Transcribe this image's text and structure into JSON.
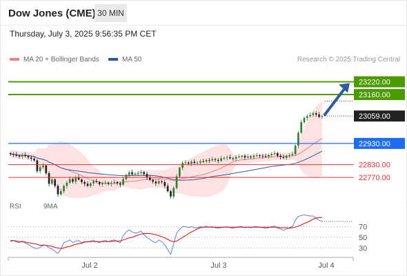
{
  "header": {
    "instrument": "Dow Jones (CME)",
    "timeframe": "30 MIN",
    "timestamp": "Thursday, July 3, 2025 9:56:35 PM CET"
  },
  "legend": {
    "ma20_label": "MA 20 + Bollinger Bands",
    "ma20_color": "#f08080",
    "ma50_label": "MA 50",
    "ma50_color": "#2e5aa0",
    "research_text": "Research © 2025 Trading Central"
  },
  "rsi_legend": {
    "rsi_label": "RSI",
    "rsi_color": "#5b7fd6",
    "ma_label": "9MA",
    "ma_color": "#e00000"
  },
  "chart_data": [
    {
      "type": "candlestick",
      "x_labels": [
        "Jul 2",
        "Jul 3",
        "Jul 4"
      ],
      "ylim": [
        22660,
        23290
      ],
      "levels": [
        {
          "value": 23220.0,
          "label": "23220.00",
          "color": "#4a9a00",
          "role": "resistance"
        },
        {
          "value": 23160.0,
          "label": "23160.00",
          "color": "#4a9a00",
          "role": "resistance"
        },
        {
          "value": 23059.0,
          "label": "23059.00",
          "color": "#222222",
          "role": "last-price"
        },
        {
          "value": 22930.0,
          "label": "22930.00",
          "color": "#1e6cf0",
          "role": "pivot"
        },
        {
          "value": 22830.0,
          "label": "22830.00",
          "color": "#e03030",
          "role": "support"
        },
        {
          "value": 22770.0,
          "label": "22770.00",
          "color": "#e03030",
          "role": "support"
        }
      ],
      "closes": [
        22880,
        22878,
        22872,
        22868,
        22876,
        22870,
        22864,
        22858,
        22850,
        22800,
        22818,
        22826,
        22790,
        22740,
        22760,
        22730,
        22690,
        22705,
        22730,
        22745,
        22762,
        22750,
        22770,
        22760,
        22748,
        22740,
        22730,
        22742,
        22752,
        22748,
        22738,
        22742,
        22745,
        22740,
        22744,
        22748,
        22742,
        22736,
        22762,
        22782,
        22794,
        22785,
        22788,
        22791,
        22795,
        22786,
        22770,
        22758,
        22750,
        22742,
        22752,
        22748,
        22730,
        22705,
        22680,
        22720,
        22775,
        22815,
        22838,
        22840,
        22835,
        22844,
        22838,
        22840,
        22846,
        22845,
        22852,
        22850,
        22856,
        22852,
        22848,
        22860,
        22862,
        22865,
        22860,
        22858,
        22866,
        22868,
        22872,
        22864,
        22868,
        22866,
        22872,
        22874,
        22872,
        22870,
        22868,
        22875,
        22880,
        22884,
        22872,
        22866,
        22862,
        22872,
        22875,
        22880,
        22920,
        22980,
        23030,
        23050,
        23058,
        23064,
        23072,
        23066,
        23055,
        23059
      ],
      "arrow_target": 23220.0
    },
    {
      "type": "line",
      "title": "RSI",
      "ylim": [
        15,
        90
      ],
      "y_ticks": [
        70,
        50,
        30
      ],
      "series": [
        {
          "name": "RSI",
          "color": "#5b7fd6",
          "values": [
            42,
            44,
            41,
            40,
            43,
            39,
            37,
            33,
            30,
            29,
            31,
            36,
            35,
            30,
            28,
            24,
            20,
            28,
            40,
            42,
            45,
            40,
            43,
            44,
            40,
            42,
            41,
            43,
            44,
            42,
            40,
            43,
            44,
            42,
            44,
            45,
            42,
            40,
            53,
            60,
            64,
            60,
            58,
            59,
            62,
            55,
            50,
            46,
            42,
            40,
            45,
            42,
            36,
            27,
            18,
            38,
            58,
            65,
            70,
            70,
            68,
            70,
            68,
            68,
            70,
            69,
            71,
            69,
            70,
            68,
            67,
            68,
            69,
            70,
            68,
            67,
            69,
            70,
            70,
            68,
            69,
            68,
            70,
            70,
            69,
            68,
            67,
            68,
            70,
            71,
            67,
            66,
            63,
            66,
            68,
            70,
            82,
            89,
            91,
            92,
            91,
            90,
            90,
            86,
            82,
            80
          ]
        },
        {
          "name": "9MA",
          "color": "#e00000",
          "values": [
            44,
            44,
            43,
            42,
            42,
            41,
            40,
            39,
            38,
            37,
            35,
            35,
            35,
            34,
            33,
            31,
            30,
            29,
            30,
            32,
            33,
            35,
            37,
            38,
            39,
            41,
            42,
            42,
            42,
            42,
            42,
            42,
            42,
            42,
            42,
            43,
            43,
            43,
            45,
            47,
            49,
            50,
            52,
            54,
            56,
            57,
            57,
            57,
            56,
            55,
            53,
            51,
            49,
            46,
            43,
            42,
            43,
            46,
            50,
            53,
            57,
            60,
            63,
            66,
            68,
            69,
            69,
            69,
            69,
            69,
            69,
            69,
            69,
            69,
            69,
            69,
            69,
            69,
            69,
            69,
            69,
            69,
            69,
            69,
            69,
            69,
            69,
            69,
            69,
            69,
            69,
            68,
            68,
            68,
            67,
            68,
            69,
            71,
            73,
            76,
            78,
            81,
            84,
            86,
            87,
            87
          ]
        }
      ]
    }
  ]
}
